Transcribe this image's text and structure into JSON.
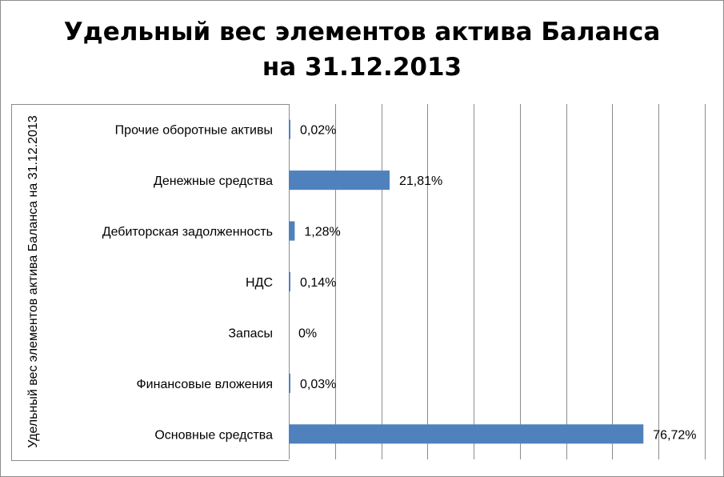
{
  "chart_data": {
    "type": "bar",
    "orientation": "horizontal",
    "title": [
      "Удельный вес элементов актива Баланса",
      "на 31.12.2013"
    ],
    "ylabel": "Удельный вес элементов актива Баланса на 31.12.2013",
    "categories": [
      "Прочие оборотные активы",
      "Денежные средства",
      "Дебиторская задолженность",
      "НДС",
      "Запасы",
      "Финансовые вложения",
      "Основные средства"
    ],
    "values": [
      0.02,
      21.81,
      1.28,
      0.14,
      0,
      0.03,
      76.72
    ],
    "data_labels": [
      "0,02%",
      "21,81%",
      "1,28%",
      "0,14%",
      "0%",
      "0,03%",
      "76,72%"
    ],
    "xlim": [
      0,
      90
    ],
    "x_gridlines": true,
    "legend": "none",
    "bar_color": "#4f81bd"
  }
}
